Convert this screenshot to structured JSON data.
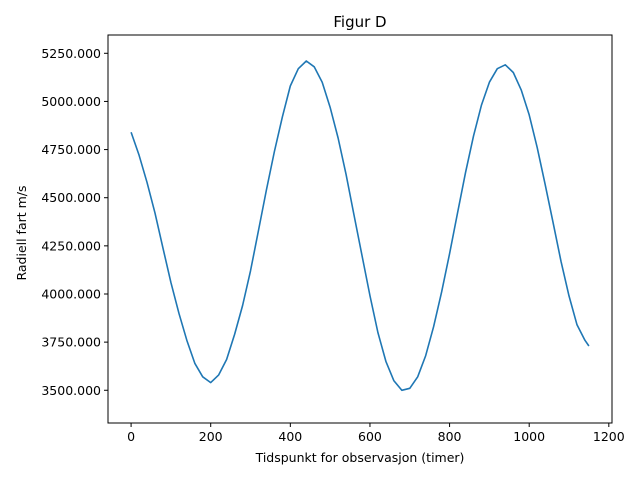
{
  "chart_data": {
    "type": "line",
    "title": "Figur D",
    "xlabel": "Tidspunkt for observasjon (timer)",
    "ylabel": "Radiell fart m/s",
    "xlim": [
      -58,
      1208
    ],
    "ylim": [
      3330,
      5345
    ],
    "xticks": [
      0,
      200,
      400,
      600,
      800,
      1000,
      1200
    ],
    "xtick_labels": [
      "0",
      "200",
      "400",
      "600",
      "800",
      "1000",
      "1200"
    ],
    "yticks": [
      3500,
      3750,
      4000,
      4250,
      4500,
      4750,
      5000,
      5250
    ],
    "ytick_labels": [
      "3500.000",
      "3750.000",
      "4000.000",
      "4250.000",
      "4500.000",
      "4750.000",
      "5000.000",
      "5250.000"
    ],
    "grid": false,
    "series": [
      {
        "color": "#1f77b4",
        "x": [
          0,
          20,
          40,
          60,
          80,
          100,
          120,
          140,
          160,
          180,
          200,
          220,
          240,
          260,
          280,
          300,
          320,
          340,
          360,
          380,
          400,
          420,
          440,
          460,
          480,
          500,
          520,
          540,
          560,
          580,
          600,
          620,
          640,
          660,
          680,
          700,
          720,
          740,
          760,
          780,
          800,
          820,
          840,
          860,
          880,
          900,
          920,
          940,
          960,
          980,
          1000,
          1020,
          1040,
          1060,
          1080,
          1100,
          1120,
          1140,
          1150
        ],
        "y": [
          4840,
          4720,
          4580,
          4420,
          4240,
          4060,
          3900,
          3760,
          3640,
          3570,
          3540,
          3580,
          3660,
          3790,
          3940,
          4120,
          4330,
          4540,
          4740,
          4920,
          5080,
          5170,
          5210,
          5180,
          5100,
          4970,
          4810,
          4620,
          4410,
          4200,
          3990,
          3800,
          3650,
          3550,
          3500,
          3510,
          3570,
          3680,
          3830,
          4010,
          4210,
          4420,
          4630,
          4820,
          4980,
          5100,
          5170,
          5190,
          5150,
          5060,
          4930,
          4760,
          4570,
          4370,
          4170,
          3990,
          3840,
          3760,
          3730
        ]
      }
    ]
  }
}
